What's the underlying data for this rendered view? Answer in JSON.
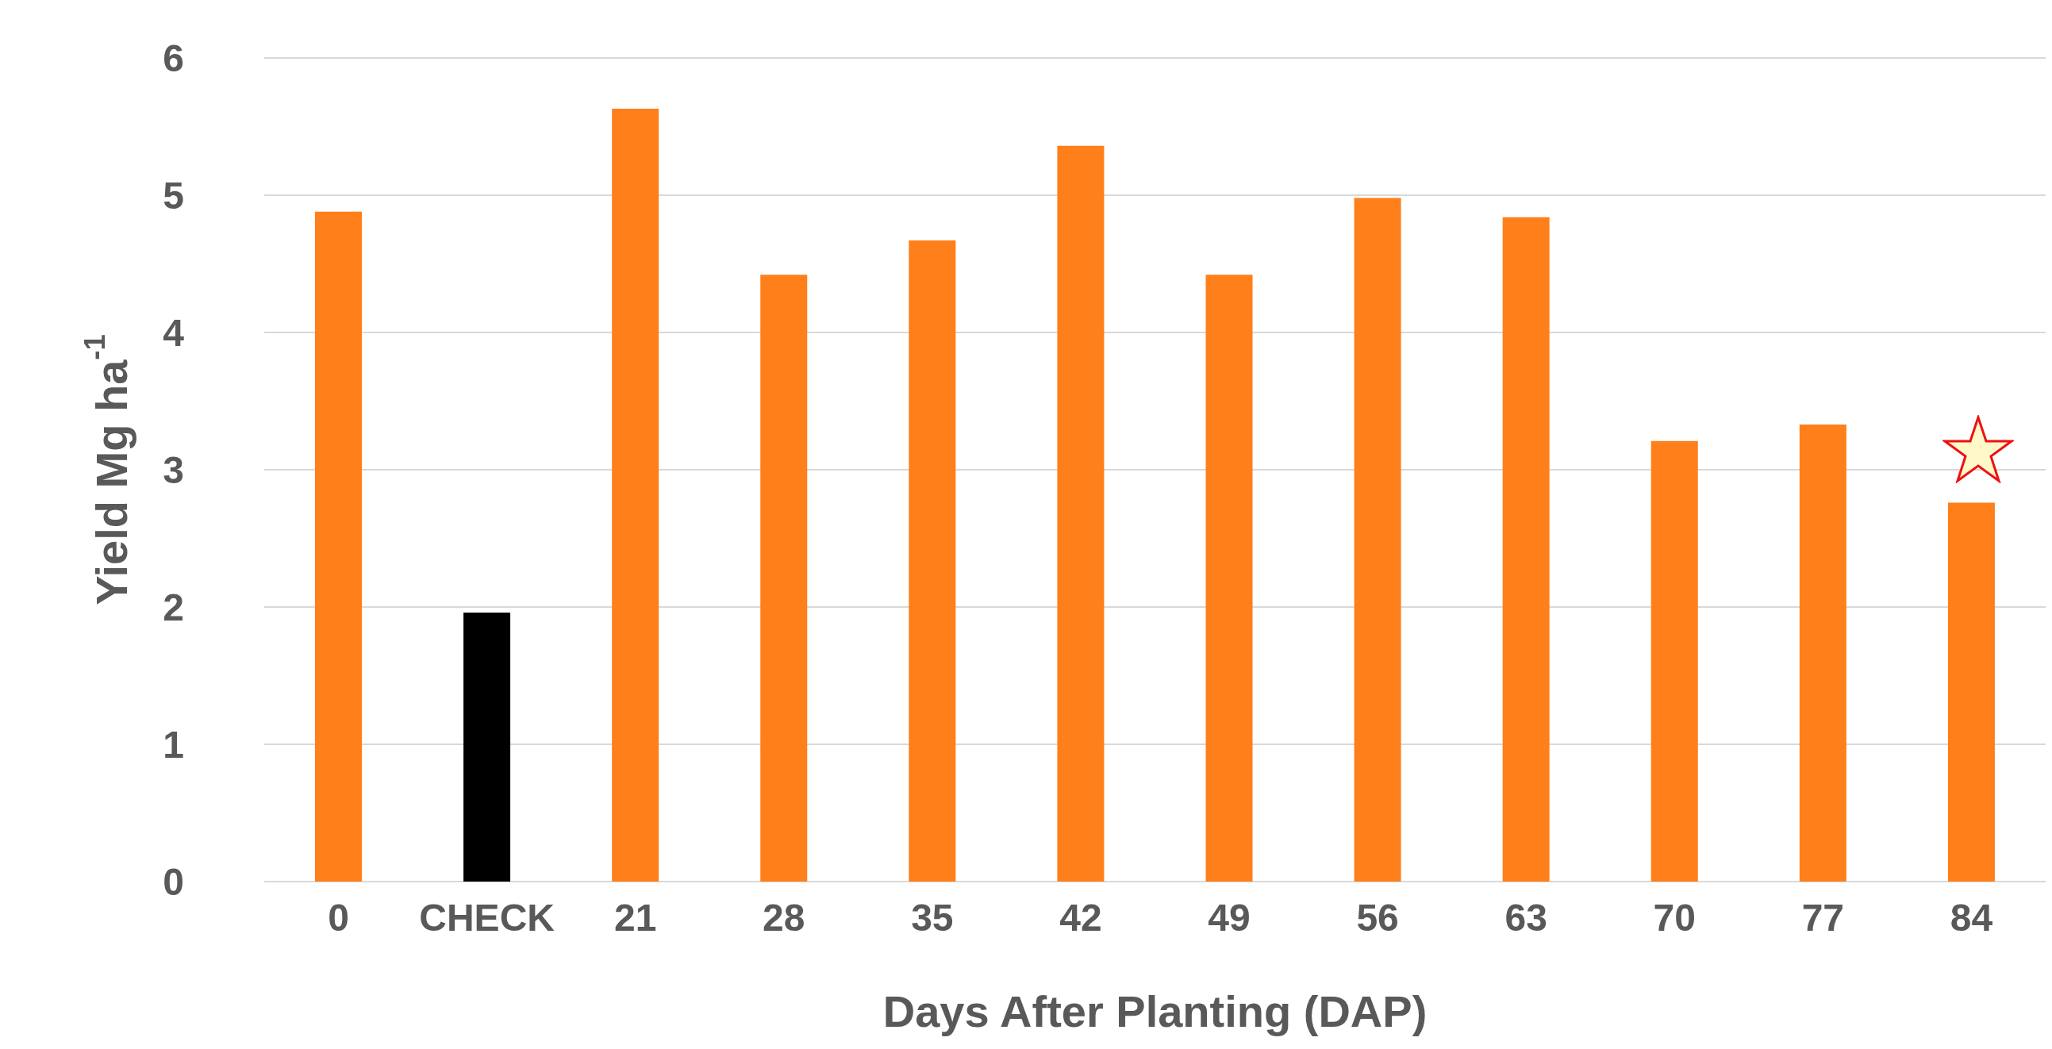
{
  "chart_data": {
    "type": "bar",
    "xlabel": "Days After Planting (DAP)",
    "ylabel": "Yield Mg ha$^{-1}$",
    "categories": [
      "0",
      "CHECK",
      "21",
      "28",
      "35",
      "42",
      "49",
      "56",
      "63",
      "70",
      "77",
      "84"
    ],
    "values": [
      4.88,
      1.96,
      5.63,
      4.42,
      4.67,
      5.36,
      4.42,
      4.98,
      4.84,
      3.21,
      3.33,
      2.76
    ],
    "colors": [
      "#ff7f1a",
      "#000000",
      "#ff7f1a",
      "#ff7f1a",
      "#ff7f1a",
      "#ff7f1a",
      "#ff7f1a",
      "#ff7f1a",
      "#ff7f1a",
      "#ff7f1a",
      "#ff7f1a",
      "#ff7f1a"
    ],
    "ylim": [
      0,
      6
    ],
    "yticks": [
      0,
      1,
      2,
      3,
      4,
      5,
      6
    ],
    "grid": "y"
  }
}
